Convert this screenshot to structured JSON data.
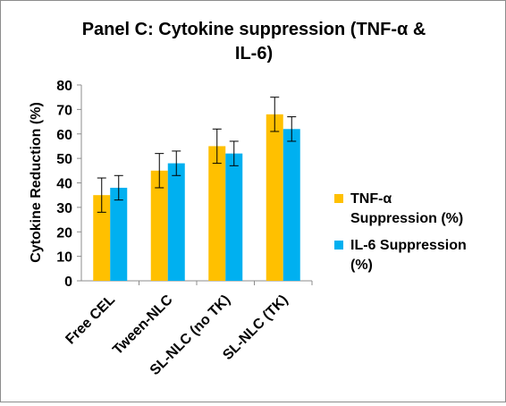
{
  "chart_data": {
    "type": "bar",
    "title_lines": [
      "Panel C: Cytokine suppression (TNF-α &",
      "IL-6)"
    ],
    "xlabel": "",
    "ylabel": "Cytokine Reduction (%)",
    "ylim": [
      0,
      80
    ],
    "yticks": [
      0,
      10,
      20,
      30,
      40,
      50,
      60,
      70,
      80
    ],
    "categories": [
      "Free CEL",
      "Tween-NLC",
      "SL-NLC (no TK)",
      "SL-NLC (TK)"
    ],
    "series": [
      {
        "name": "TNF-α Suppression (%)",
        "legend_lines": [
          "TNF-α",
          "Suppression (%)"
        ],
        "color": "#FFC000",
        "values": [
          35,
          45,
          55,
          68
        ],
        "errors": [
          7,
          7,
          7,
          7
        ]
      },
      {
        "name": "IL-6 Suppression (%)",
        "legend_lines": [
          "IL-6 Suppression",
          "(%)"
        ],
        "color": "#00B0F0",
        "values": [
          38,
          48,
          52,
          62
        ],
        "errors": [
          5,
          5,
          5,
          5
        ]
      }
    ],
    "grid": false,
    "legend_position": "right"
  }
}
